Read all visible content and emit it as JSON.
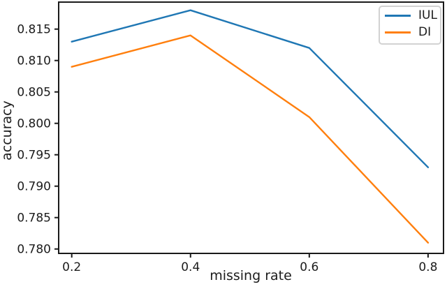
{
  "figure": {
    "background_color": "#ffffff",
    "spine_color": "#1a1a1a",
    "text_color": "#1c1c1c",
    "legend_border_color": "#d2d2d2"
  },
  "chart_data": {
    "type": "line",
    "title": "",
    "xlabel": "missing rate",
    "ylabel": "accuracy",
    "x": [
      0.2,
      0.4,
      0.6,
      0.8
    ],
    "series": [
      {
        "name": "IUL",
        "color": "#1f77b4",
        "values": [
          0.813,
          0.818,
          0.812,
          0.793
        ]
      },
      {
        "name": "DI",
        "color": "#ff7f0e",
        "values": [
          0.809,
          0.814,
          0.801,
          0.781
        ]
      }
    ],
    "xlim": [
      0.178,
      0.826
    ],
    "ylim": [
      0.7793,
      0.8193
    ],
    "x_ticks": {
      "values": [
        0.2,
        0.4,
        0.6,
        0.8
      ],
      "labels": [
        "0.2",
        "0.4",
        "0.6",
        "0.8"
      ]
    },
    "y_ticks": {
      "values": [
        0.78,
        0.785,
        0.79,
        0.795,
        0.8,
        0.805,
        0.81,
        0.815
      ],
      "labels": [
        "0.780",
        "0.785",
        "0.790",
        "0.795",
        "0.800",
        "0.805",
        "0.810",
        "0.815"
      ]
    },
    "grid": false,
    "markers": false,
    "legend": {
      "position": "upper right",
      "entries": [
        "IUL",
        "DI"
      ]
    }
  }
}
